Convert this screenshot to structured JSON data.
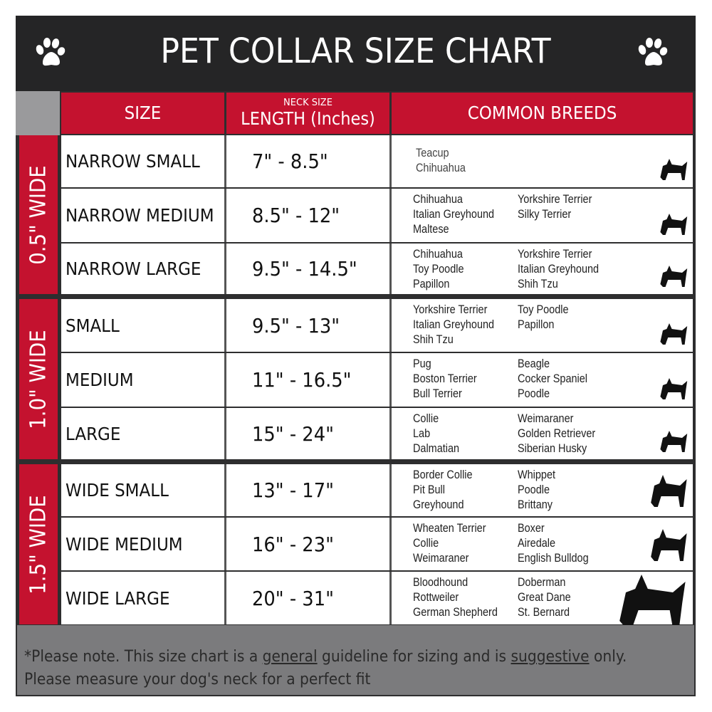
{
  "title": "PET COLLAR SIZE CHART",
  "icons": {
    "left": "paw-print-icon",
    "right": "paw-print-icon"
  },
  "colors": {
    "accent_red": "#c4122f",
    "header_dark": "#252526",
    "footer_gray": "#7b7b7d"
  },
  "header": {
    "size": "SIZE",
    "length_small": "NECK SIZE",
    "length": "LENGTH (Inches)",
    "breeds": "COMMON BREEDS"
  },
  "groups": [
    {
      "label": "0.5\" WIDE",
      "rows": [
        {
          "size": "NARROW SMALL",
          "length": "7\" - 8.5\"",
          "breeds_left": [
            "Teacup",
            "Chihuahua"
          ],
          "breeds_right": [],
          "icon": "yorkie-silhouette-icon"
        },
        {
          "size": "NARROW MEDIUM",
          "length": "8.5\" - 12\"",
          "breeds_left": [
            "Chihuahua",
            "Italian Greyhound",
            "Maltese"
          ],
          "breeds_right": [
            "Yorkshire Terrier",
            "Silky Terrier"
          ],
          "icon": "chihuahua-silhouette-icon"
        },
        {
          "size": "NARROW LARGE",
          "length": "9.5\" - 14.5\"",
          "breeds_left": [
            "Chihuahua",
            "Toy Poodle",
            "Papillon"
          ],
          "breeds_right": [
            "Yorkshire Terrier",
            "Italian Greyhound",
            "Shih Tzu"
          ],
          "icon": "pomeranian-silhouette-icon"
        }
      ]
    },
    {
      "label": "1.0\" WIDE",
      "rows": [
        {
          "size": "SMALL",
          "length": "9.5\" - 13\"",
          "breeds_left": [
            "Yorkshire Terrier",
            "Italian Greyhound",
            "Shih Tzu"
          ],
          "breeds_right": [
            "Toy Poodle",
            "Papillon"
          ],
          "icon": "pomeranian-silhouette-icon"
        },
        {
          "size": "MEDIUM",
          "length": "11\" - 16.5\"",
          "breeds_left": [
            "Pug",
            "Boston Terrier",
            "Bull Terrier"
          ],
          "breeds_right": [
            "Beagle",
            "Cocker Spaniel",
            "Poodle"
          ],
          "icon": "dachshund-silhouette-icon"
        },
        {
          "size": "LARGE",
          "length": "15\" - 24\"",
          "breeds_left": [
            "Collie",
            "Lab",
            "Dalmatian"
          ],
          "breeds_right": [
            "Weimaraner",
            "Golden Retriever",
            "Siberian Husky"
          ],
          "icon": "shepherd-silhouette-icon"
        }
      ]
    },
    {
      "label": "1.5\" WIDE",
      "rows": [
        {
          "size": "WIDE SMALL",
          "length": "13\" - 17\"",
          "breeds_left": [
            "Border Collie",
            "Pit Bull",
            "Greyhound"
          ],
          "breeds_right": [
            "Whippet",
            "Poodle",
            "Brittany"
          ],
          "icon": "bulldog-silhouette-icon"
        },
        {
          "size": "WIDE MEDIUM",
          "length": "16\" - 23\"",
          "breeds_left": [
            "Wheaten Terrier",
            "Collie",
            "Weimaraner"
          ],
          "breeds_right": [
            "Boxer",
            "Airedale",
            "English Bulldog"
          ],
          "icon": "pitbull-silhouette-icon"
        },
        {
          "size": "WIDE LARGE",
          "length": "20\" - 31\"",
          "breeds_left": [
            "Bloodhound",
            "Rottweiler",
            "German Shepherd"
          ],
          "breeds_right": [
            "Doberman",
            "Great Dane",
            "St. Bernard"
          ],
          "icon": "doberman-silhouette-icon"
        }
      ]
    }
  ],
  "footer": {
    "line1_a": "*Please note. This size chart is a ",
    "line1_general": "general",
    "line1_b": " guideline for sizing and is ",
    "line1_suggestive": "suggestive",
    "line1_c": " only.",
    "line2": "Please measure your dog's neck for a perfect fit"
  }
}
